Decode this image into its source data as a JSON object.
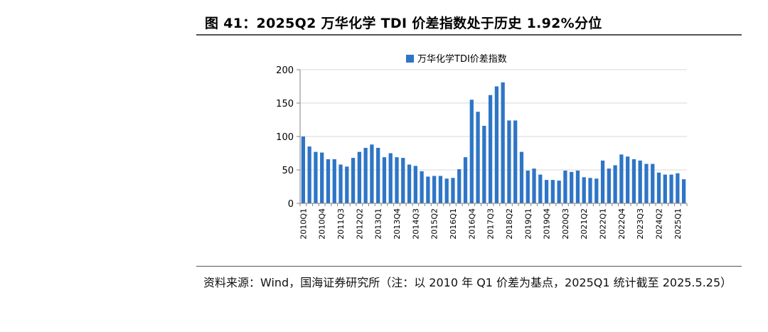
{
  "figure": {
    "title": "图 41：2025Q2 万华化学 TDI 价差指数处于历史 1.92%分位",
    "source": "资料来源：Wind，国海证券研究所（注：以 2010 年 Q1 价差为基点，2025Q1 统计截至 2025.5.25）"
  },
  "colors": {
    "bar": "#2E75C6",
    "grid": "#D9D9D9",
    "axis": "#808080"
  },
  "chart_data": {
    "type": "bar",
    "legend": "万华化学TDI价差指数",
    "legend_position": "top-center",
    "grid": true,
    "ylim": [
      0,
      200
    ],
    "yticks": [
      0,
      50,
      100,
      150,
      200
    ],
    "categories": [
      "2010Q1",
      "2010Q2",
      "2010Q3",
      "2010Q4",
      "2011Q1",
      "2011Q2",
      "2011Q3",
      "2011Q4",
      "2012Q1",
      "2012Q2",
      "2012Q3",
      "2012Q4",
      "2013Q1",
      "2013Q2",
      "2013Q3",
      "2013Q4",
      "2014Q1",
      "2014Q2",
      "2014Q3",
      "2014Q4",
      "2015Q1",
      "2015Q2",
      "2015Q3",
      "2015Q4",
      "2016Q1",
      "2016Q2",
      "2016Q3",
      "2016Q4",
      "2017Q1",
      "2017Q2",
      "2017Q3",
      "2017Q4",
      "2018Q1",
      "2018Q2",
      "2018Q3",
      "2018Q4",
      "2019Q1",
      "2019Q2",
      "2019Q3",
      "2019Q4",
      "2020Q1",
      "2020Q2",
      "2020Q3",
      "2020Q4",
      "2021Q1",
      "2021Q2",
      "2021Q3",
      "2021Q4",
      "2022Q1",
      "2022Q2",
      "2022Q3",
      "2022Q4",
      "2023Q1",
      "2023Q2",
      "2023Q3",
      "2023Q4",
      "2024Q1",
      "2024Q2",
      "2024Q3",
      "2024Q4",
      "2025Q1",
      "2025Q2"
    ],
    "values": [
      100,
      85,
      77,
      76,
      66,
      66,
      58,
      55,
      68,
      77,
      83,
      88,
      83,
      69,
      75,
      69,
      68,
      58,
      56,
      48,
      40,
      41,
      41,
      37,
      38,
      51,
      69,
      155,
      137,
      116,
      162,
      175,
      181,
      124,
      124,
      77,
      49,
      52,
      43,
      35,
      35,
      34,
      49,
      47,
      49,
      39,
      38,
      37,
      64,
      52,
      57,
      73,
      70,
      66,
      64,
      59,
      59,
      46,
      43,
      43,
      45,
      36
    ],
    "xtick_labels": [
      "2010Q1",
      "2010Q4",
      "2011Q3",
      "2012Q2",
      "2013Q1",
      "2013Q4",
      "2014Q3",
      "2015Q2",
      "2016Q1",
      "2016Q4",
      "2017Q3",
      "2018Q2",
      "2019Q1",
      "2019Q4",
      "2020Q3",
      "2021Q2",
      "2022Q1",
      "2022Q4",
      "2023Q3",
      "2024Q2",
      "2025Q1"
    ]
  }
}
